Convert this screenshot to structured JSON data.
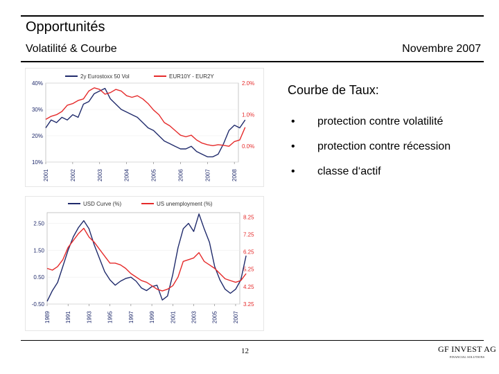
{
  "header": {
    "title": "Opportunités",
    "subtitle": "Volatilité & Courbe",
    "date": "Novembre 2007"
  },
  "content": {
    "section_title": "Courbe de Taux:",
    "bullet_symbol": "•",
    "bullets": [
      "protection contre volatilité",
      "protection contre récession",
      "classe d‘actif"
    ]
  },
  "footer": {
    "page_number": "12",
    "logo_text": "GF INVEST AG",
    "logo_tagline": "FINANCIAL SOLUTIONS"
  },
  "chart_data": [
    {
      "type": "line",
      "title": "",
      "x": [
        "2001",
        "2002",
        "2003",
        "2004",
        "2005",
        "2006",
        "2007",
        "2008"
      ],
      "left_axis": {
        "ticks": [
          "40%",
          "30%",
          "20%",
          "10%"
        ],
        "ylim": [
          10,
          40
        ]
      },
      "right_axis": {
        "ticks": [
          "2.0%",
          "1.0%",
          "0.0%"
        ],
        "ylim": [
          -0.5,
          2.0
        ]
      },
      "series": [
        {
          "name": "2y Eurostoxx 50 Vol",
          "color": "#1f2a6b",
          "axis": "left",
          "points": [
            [
              2001.0,
              23
            ],
            [
              2001.2,
              26
            ],
            [
              2001.4,
              25
            ],
            [
              2001.6,
              27
            ],
            [
              2001.8,
              26
            ],
            [
              2002.0,
              28
            ],
            [
              2002.2,
              27
            ],
            [
              2002.4,
              32
            ],
            [
              2002.6,
              33
            ],
            [
              2002.8,
              36
            ],
            [
              2003.0,
              37
            ],
            [
              2003.2,
              38
            ],
            [
              2003.4,
              34
            ],
            [
              2003.6,
              32
            ],
            [
              2003.8,
              30
            ],
            [
              2004.0,
              29
            ],
            [
              2004.2,
              28
            ],
            [
              2004.4,
              27
            ],
            [
              2004.6,
              25
            ],
            [
              2004.8,
              23
            ],
            [
              2005.0,
              22
            ],
            [
              2005.2,
              20
            ],
            [
              2005.4,
              18
            ],
            [
              2005.6,
              17
            ],
            [
              2005.8,
              16
            ],
            [
              2006.0,
              15
            ],
            [
              2006.2,
              15
            ],
            [
              2006.4,
              16
            ],
            [
              2006.6,
              14
            ],
            [
              2006.8,
              13
            ],
            [
              2007.0,
              12
            ],
            [
              2007.2,
              12
            ],
            [
              2007.4,
              13
            ],
            [
              2007.6,
              17
            ],
            [
              2007.8,
              22
            ],
            [
              2008.0,
              24
            ],
            [
              2008.2,
              23
            ],
            [
              2008.4,
              26
            ]
          ]
        },
        {
          "name": "EUR10Y - EUR2Y",
          "color": "#e52a2a",
          "axis": "right",
          "points": [
            [
              2001.0,
              0.85
            ],
            [
              2001.2,
              0.95
            ],
            [
              2001.4,
              1.0
            ],
            [
              2001.6,
              1.1
            ],
            [
              2001.8,
              1.3
            ],
            [
              2002.0,
              1.35
            ],
            [
              2002.2,
              1.45
            ],
            [
              2002.4,
              1.5
            ],
            [
              2002.6,
              1.75
            ],
            [
              2002.8,
              1.85
            ],
            [
              2003.0,
              1.8
            ],
            [
              2003.2,
              1.65
            ],
            [
              2003.4,
              1.7
            ],
            [
              2003.6,
              1.8
            ],
            [
              2003.8,
              1.75
            ],
            [
              2004.0,
              1.6
            ],
            [
              2004.2,
              1.55
            ],
            [
              2004.4,
              1.6
            ],
            [
              2004.6,
              1.5
            ],
            [
              2004.8,
              1.35
            ],
            [
              2005.0,
              1.15
            ],
            [
              2005.2,
              1.0
            ],
            [
              2005.4,
              0.75
            ],
            [
              2005.6,
              0.65
            ],
            [
              2005.8,
              0.5
            ],
            [
              2006.0,
              0.35
            ],
            [
              2006.2,
              0.3
            ],
            [
              2006.4,
              0.35
            ],
            [
              2006.6,
              0.2
            ],
            [
              2006.8,
              0.1
            ],
            [
              2007.0,
              0.05
            ],
            [
              2007.2,
              0.02
            ],
            [
              2007.4,
              0.05
            ],
            [
              2007.6,
              0.03
            ],
            [
              2007.8,
              0.0
            ],
            [
              2008.0,
              0.15
            ],
            [
              2008.2,
              0.2
            ],
            [
              2008.4,
              0.6
            ]
          ]
        }
      ]
    },
    {
      "type": "line",
      "title": "",
      "x": [
        "1989",
        "1991",
        "1993",
        "1995",
        "1997",
        "1999",
        "2001",
        "2003",
        "2005",
        "2007"
      ],
      "left_axis": {
        "ticks": [
          "2.50",
          "1.50",
          "0.50",
          "-0.50"
        ],
        "ylim": [
          -0.5,
          2.9
        ]
      },
      "right_axis": {
        "ticks": [
          "8.25",
          "7.25",
          "6.25",
          "5.25",
          "4.25",
          "3.25"
        ],
        "ylim": [
          3.25,
          8.5
        ]
      },
      "series": [
        {
          "name": "USD Curve (%)",
          "color": "#1f2a6b",
          "axis": "left",
          "points": [
            [
              1989.0,
              -0.4
            ],
            [
              1989.5,
              0.0
            ],
            [
              1990.0,
              0.3
            ],
            [
              1990.5,
              0.9
            ],
            [
              1991.0,
              1.5
            ],
            [
              1991.5,
              2.0
            ],
            [
              1992.0,
              2.35
            ],
            [
              1992.5,
              2.6
            ],
            [
              1993.0,
              2.3
            ],
            [
              1993.5,
              1.7
            ],
            [
              1994.0,
              1.2
            ],
            [
              1994.5,
              0.7
            ],
            [
              1995.0,
              0.4
            ],
            [
              1995.5,
              0.2
            ],
            [
              1996.0,
              0.35
            ],
            [
              1996.5,
              0.45
            ],
            [
              1997.0,
              0.5
            ],
            [
              1997.5,
              0.35
            ],
            [
              1998.0,
              0.1
            ],
            [
              1998.5,
              0.0
            ],
            [
              1999.0,
              0.15
            ],
            [
              1999.5,
              0.2
            ],
            [
              2000.0,
              -0.35
            ],
            [
              2000.5,
              -0.2
            ],
            [
              2001.0,
              0.6
            ],
            [
              2001.5,
              1.6
            ],
            [
              2002.0,
              2.3
            ],
            [
              2002.5,
              2.5
            ],
            [
              2003.0,
              2.2
            ],
            [
              2003.5,
              2.85
            ],
            [
              2004.0,
              2.3
            ],
            [
              2004.5,
              1.8
            ],
            [
              2005.0,
              0.9
            ],
            [
              2005.5,
              0.4
            ],
            [
              2006.0,
              0.05
            ],
            [
              2006.5,
              -0.1
            ],
            [
              2007.0,
              0.05
            ],
            [
              2007.5,
              0.4
            ],
            [
              2008.0,
              1.3
            ]
          ]
        },
        {
          "name": "US unemployment (%)",
          "color": "#e52a2a",
          "axis": "right",
          "points": [
            [
              1989.0,
              5.3
            ],
            [
              1989.5,
              5.2
            ],
            [
              1990.0,
              5.4
            ],
            [
              1990.5,
              5.8
            ],
            [
              1991.0,
              6.5
            ],
            [
              1991.5,
              6.9
            ],
            [
              1992.0,
              7.3
            ],
            [
              1992.5,
              7.6
            ],
            [
              1993.0,
              7.1
            ],
            [
              1993.5,
              6.8
            ],
            [
              1994.0,
              6.4
            ],
            [
              1994.5,
              6.0
            ],
            [
              1995.0,
              5.6
            ],
            [
              1995.5,
              5.6
            ],
            [
              1996.0,
              5.5
            ],
            [
              1996.5,
              5.3
            ],
            [
              1997.0,
              5.0
            ],
            [
              1997.5,
              4.8
            ],
            [
              1998.0,
              4.6
            ],
            [
              1998.5,
              4.5
            ],
            [
              1999.0,
              4.3
            ],
            [
              1999.5,
              4.1
            ],
            [
              2000.0,
              4.0
            ],
            [
              2000.5,
              4.1
            ],
            [
              2001.0,
              4.3
            ],
            [
              2001.5,
              4.8
            ],
            [
              2002.0,
              5.7
            ],
            [
              2002.5,
              5.8
            ],
            [
              2003.0,
              5.9
            ],
            [
              2003.5,
              6.2
            ],
            [
              2004.0,
              5.7
            ],
            [
              2004.5,
              5.5
            ],
            [
              2005.0,
              5.3
            ],
            [
              2005.5,
              5.0
            ],
            [
              2006.0,
              4.7
            ],
            [
              2006.5,
              4.6
            ],
            [
              2007.0,
              4.5
            ],
            [
              2007.5,
              4.6
            ],
            [
              2008.0,
              5.0
            ]
          ]
        }
      ]
    }
  ]
}
